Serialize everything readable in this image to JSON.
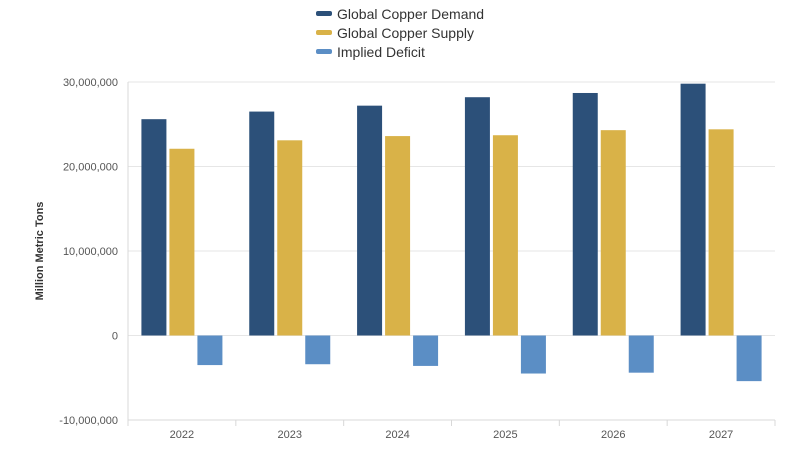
{
  "chart_data": {
    "type": "bar",
    "title": "",
    "xlabel": "",
    "ylabel": "Million Metric Tons",
    "categories": [
      "2022",
      "2023",
      "2024",
      "2025",
      "2026",
      "2027"
    ],
    "series": [
      {
        "name": "Global Copper Demand",
        "color": "#2c5079",
        "values": [
          25600000,
          26500000,
          27200000,
          28200000,
          28700000,
          29800000
        ]
      },
      {
        "name": "Global Copper Supply",
        "color": "#d9b248",
        "values": [
          22100000,
          23100000,
          23600000,
          23700000,
          24300000,
          24400000
        ]
      },
      {
        "name": "Implied Deficit",
        "color": "#5b8ec5",
        "values": [
          -3500000,
          -3400000,
          -3600000,
          -4500000,
          -4400000,
          -5400000
        ]
      }
    ],
    "ylim": [
      -10000000,
      30000000
    ],
    "yticks": [
      {
        "value": 30000000,
        "label": "30,000,000"
      },
      {
        "value": 20000000,
        "label": "20,000,000"
      },
      {
        "value": 10000000,
        "label": "10,000,000"
      },
      {
        "value": 0,
        "label": "0"
      },
      {
        "value": -10000000,
        "label": "-10,000,000"
      }
    ],
    "grid": true,
    "legend_position": "top-center"
  }
}
